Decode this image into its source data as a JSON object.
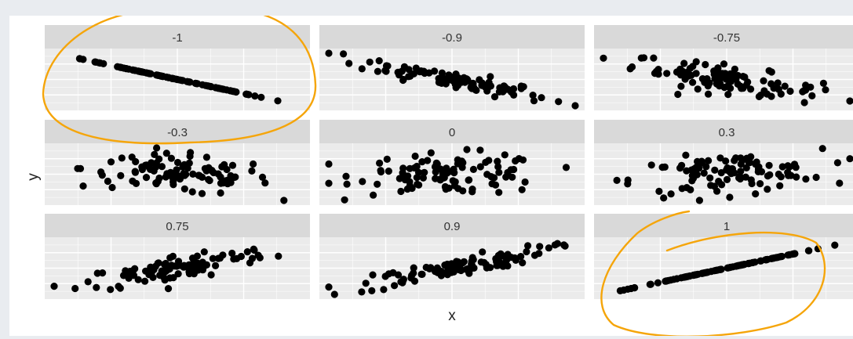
{
  "chart_data": {
    "type": "scatter",
    "facet_layout": "3x3 grid",
    "xlabel": "x",
    "ylabel": "y",
    "axis_ticks": "none",
    "grid": true,
    "point_color": "#000000",
    "panel_background": "#ebebeb",
    "strip_background": "#d9d9d9",
    "panels": [
      {
        "label": "-1",
        "correlation": -1
      },
      {
        "label": "-0.9",
        "correlation": -0.9
      },
      {
        "label": "-0.75",
        "correlation": -0.75
      },
      {
        "label": "-0.3",
        "correlation": -0.3
      },
      {
        "label": "0",
        "correlation": 0
      },
      {
        "label": "0.3",
        "correlation": 0.3
      },
      {
        "label": "0.75",
        "correlation": 0.75
      },
      {
        "label": "0.9",
        "correlation": 0.9
      },
      {
        "label": "1",
        "correlation": 1
      }
    ],
    "points_per_panel": 100
  },
  "annotations": {
    "color": "#f5a50a",
    "shapes": [
      "circle around panel -1",
      "circle around panel 1"
    ]
  }
}
